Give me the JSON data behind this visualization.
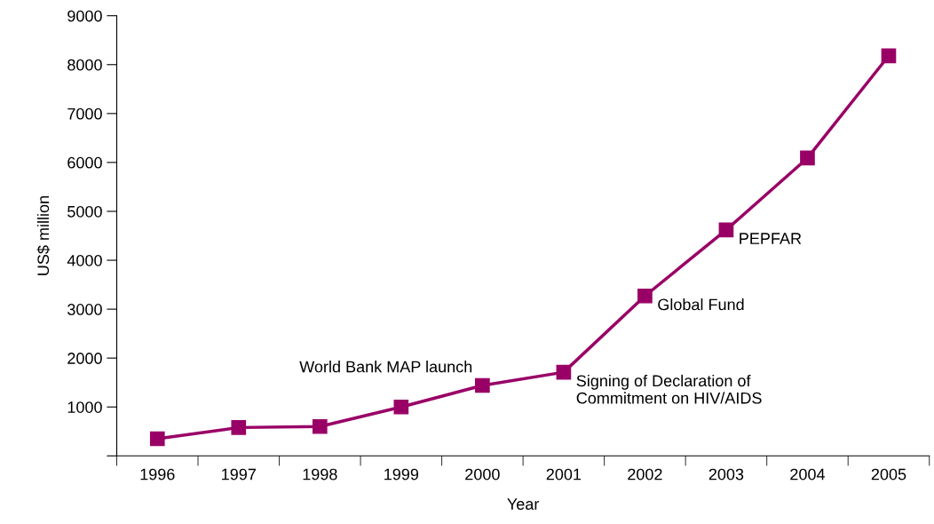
{
  "chart_data": {
    "type": "line",
    "xlabel": "Year",
    "ylabel": "US$ million",
    "categories": [
      "1996",
      "1997",
      "1998",
      "1999",
      "2000",
      "2001",
      "2002",
      "2003",
      "2004",
      "2005"
    ],
    "series": [
      {
        "color": "#990066",
        "values": [
          350,
          580,
          600,
          1000,
          1440,
          1710,
          3270,
          4620,
          6090,
          8180
        ]
      }
    ],
    "ylim": [
      0,
      9000
    ],
    "yticks": [
      {
        "value": 0,
        "label": null
      },
      1000,
      2000,
      3000,
      4000,
      5000,
      6000,
      7000,
      8000,
      9000
    ],
    "marker": "square",
    "line_style": "solid",
    "grid": false,
    "legend": false,
    "annotations": [
      {
        "text": "World Bank MAP launch",
        "x": "2000",
        "y": 1440
      },
      {
        "text": "Signing of Declaration of\nCommitment on HIV/AIDS",
        "x": "2001",
        "y": 1710
      },
      {
        "text": "Global Fund",
        "x": "2002",
        "y": 3270
      },
      {
        "text": "PEPFAR",
        "x": "2003",
        "y": 4620
      }
    ]
  }
}
